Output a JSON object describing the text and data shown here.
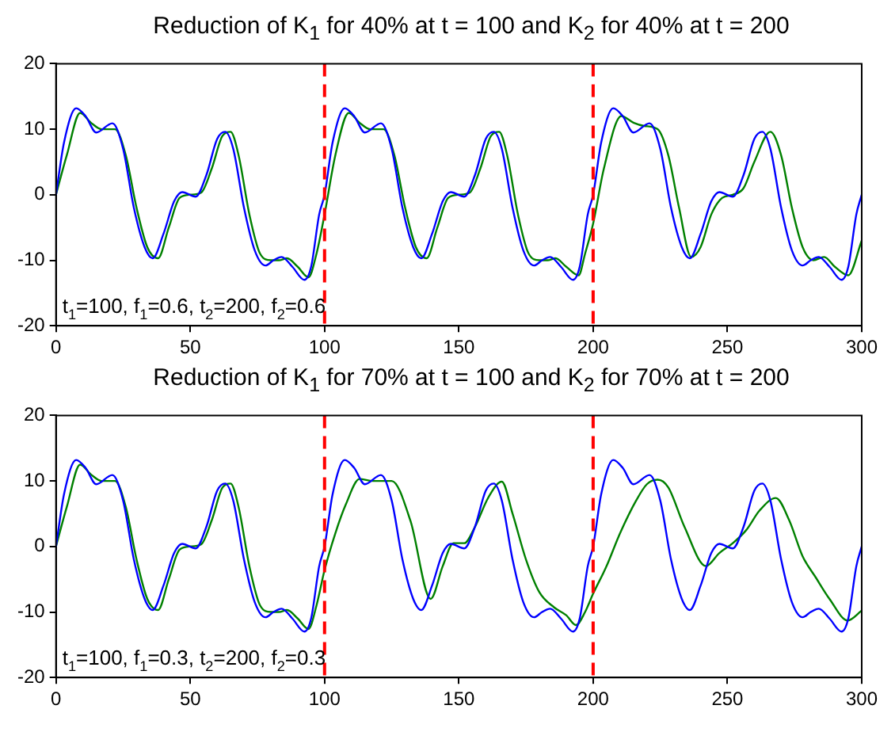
{
  "chart_data": [
    {
      "type": "line",
      "title": "Reduction of K$_{1}$ for 40% at t = 100 and K$_{2}$ for 40% at t = 200",
      "xlim": [
        0,
        300
      ],
      "xticks": [
        0,
        50,
        100,
        150,
        200,
        250,
        300
      ],
      "ylim": [
        -20,
        20
      ],
      "yticks": [
        -20,
        -10,
        0,
        10,
        20
      ],
      "grid": false,
      "marker": "none",
      "line_style": "solid",
      "ref_lines": [
        {
          "axis": "x",
          "value": 100,
          "color": "#ff0000",
          "line_style": "dashed"
        },
        {
          "axis": "x",
          "value": 200,
          "color": "#ff0000",
          "line_style": "dashed"
        }
      ],
      "annotations": [
        "t$_{1}$=100, f$_{1}$=0.6, t$_{2}$=200, f$_{2}$=0.6"
      ],
      "series": [
        {
          "color": "#0000ff",
          "x": [
            0,
            3,
            7.5,
            11,
            15,
            21,
            25,
            29,
            33,
            36,
            40,
            44,
            47,
            52,
            56,
            60,
            63,
            66,
            70,
            74,
            78,
            81,
            84,
            88,
            92.5,
            95,
            98,
            100,
            103,
            107.5,
            111,
            115,
            121,
            125,
            129,
            133,
            136,
            140,
            144,
            147,
            152,
            156,
            160,
            163,
            166,
            170,
            174,
            178,
            181,
            184,
            188,
            192.5,
            195,
            198,
            200,
            203,
            207.5,
            211,
            215,
            221,
            225,
            229,
            233,
            236,
            240,
            244,
            247,
            252,
            256,
            260,
            263,
            266,
            270,
            274,
            278,
            281,
            284,
            288,
            292.5,
            295,
            298,
            300
          ],
          "values": [
            0,
            8,
            13.2,
            12,
            9.5,
            10.9,
            7,
            -2,
            -8,
            -9.7,
            -6,
            -1,
            0.4,
            -0.3,
            3,
            8.5,
            9.6,
            7,
            -2,
            -8.5,
            -10.8,
            -10,
            -9.5,
            -11,
            -13,
            -11,
            -3,
            0,
            8,
            13.2,
            12,
            9.5,
            10.9,
            7,
            -2,
            -8,
            -9.7,
            -6,
            -1,
            0.4,
            -0.3,
            3,
            8.5,
            9.6,
            7,
            -2,
            -8.5,
            -10.8,
            -10,
            -9.5,
            -11,
            -13,
            -11,
            -3,
            0,
            8,
            13.2,
            12,
            9.5,
            10.9,
            7,
            -2,
            -8,
            -9.7,
            -6,
            -1,
            0.4,
            -0.3,
            3,
            8.5,
            9.6,
            7,
            -2,
            -8.5,
            -10.8,
            -10,
            -9.5,
            -11,
            -13,
            -11,
            -3,
            0
          ]
        },
        {
          "color": "#008000",
          "x": [
            0,
            4,
            9,
            13,
            17,
            22,
            26,
            30,
            34,
            38,
            42,
            46,
            50,
            54,
            58,
            62,
            65,
            68,
            72,
            76,
            80,
            83,
            86,
            90,
            94,
            97,
            100,
            104,
            109,
            113,
            117,
            122,
            126,
            130,
            134,
            138,
            142,
            146,
            150,
            154,
            158,
            162,
            165,
            168,
            172,
            176,
            180,
            183,
            186,
            190,
            194.6,
            197,
            200,
            204,
            210.5,
            215,
            219,
            224,
            228,
            232,
            236.5,
            240,
            244,
            248,
            252,
            256,
            260,
            266,
            270,
            274,
            278,
            282,
            286,
            290,
            295,
            300
          ],
          "values": [
            0,
            6,
            12.5,
            11,
            10,
            10,
            6,
            -2,
            -8,
            -9.7,
            -5,
            -0.5,
            0,
            0.3,
            4,
            9,
            9.6,
            6,
            -3,
            -9,
            -10,
            -10,
            -9.7,
            -11,
            -12.6,
            -9,
            -3,
            6,
            12.5,
            11,
            10,
            10,
            6,
            -2,
            -8,
            -9.7,
            -5,
            -0.5,
            0,
            0.3,
            4,
            9,
            9.6,
            6,
            -3,
            -9,
            -10,
            -10,
            -9.7,
            -11,
            -12.3,
            -9,
            -4.4,
            4,
            12,
            11,
            10.5,
            10,
            6,
            -2,
            -9.5,
            -8,
            -3,
            -0.5,
            0,
            1,
            5,
            9.6,
            6,
            -2,
            -8,
            -10,
            -9.5,
            -11,
            -12.3,
            -7
          ]
        }
      ]
    },
    {
      "type": "line",
      "title": "Reduction of K$_{1}$ for 70% at t = 100 and K$_{2}$ for 70% at t = 200",
      "xlim": [
        0,
        300
      ],
      "xticks": [
        0,
        50,
        100,
        150,
        200,
        250,
        300
      ],
      "ylim": [
        -20,
        20
      ],
      "yticks": [
        -20,
        -10,
        0,
        10,
        20
      ],
      "grid": false,
      "marker": "none",
      "line_style": "solid",
      "ref_lines": [
        {
          "axis": "x",
          "value": 100,
          "color": "#ff0000",
          "line_style": "dashed"
        },
        {
          "axis": "x",
          "value": 200,
          "color": "#ff0000",
          "line_style": "dashed"
        }
      ],
      "annotations": [
        "t$_{1}$=100, f$_{1}$=0.3, t$_{2}$=200, f$_{2}$=0.3"
      ],
      "series": [
        {
          "color": "#0000ff",
          "x": [
            0,
            3,
            7.5,
            11,
            15,
            21,
            25,
            29,
            33,
            36,
            40,
            44,
            47,
            52,
            56,
            60,
            63,
            66,
            70,
            74,
            78,
            81,
            84,
            88,
            92.5,
            95,
            98,
            100,
            103,
            107.5,
            111,
            115,
            121,
            125,
            129,
            133,
            136,
            140,
            144,
            147,
            152,
            156,
            160,
            163,
            166,
            170,
            174,
            178,
            181,
            184,
            188,
            192.5,
            195,
            198,
            200,
            203,
            207.5,
            211,
            215,
            221,
            225,
            229,
            233,
            236,
            240,
            244,
            247,
            252,
            256,
            260,
            263,
            266,
            270,
            274,
            278,
            281,
            284,
            288,
            292.5,
            295,
            298,
            300
          ],
          "values": [
            0,
            8,
            13.2,
            12,
            9.5,
            10.9,
            7,
            -2,
            -8,
            -9.7,
            -6,
            -1,
            0.4,
            -0.3,
            3,
            8.5,
            9.6,
            7,
            -2,
            -8.5,
            -10.8,
            -10,
            -9.5,
            -11,
            -13,
            -11,
            -3,
            0,
            8,
            13.2,
            12,
            9.5,
            10.9,
            7,
            -2,
            -8,
            -9.7,
            -6,
            -1,
            0.4,
            -0.3,
            3,
            8.5,
            9.6,
            7,
            -2,
            -8.5,
            -10.8,
            -10,
            -9.5,
            -11,
            -13,
            -11,
            -3,
            0,
            8,
            13.2,
            12,
            9.5,
            10.9,
            7,
            -2,
            -8,
            -9.7,
            -6,
            -1,
            0.4,
            -0.3,
            3,
            8.5,
            9.6,
            7,
            -2,
            -8.5,
            -10.8,
            -10,
            -9.5,
            -11,
            -13,
            -11,
            -3,
            0
          ]
        },
        {
          "color": "#008000",
          "x": [
            0,
            4,
            9,
            13,
            17,
            22,
            26,
            30,
            34,
            38,
            42,
            46,
            50,
            54,
            58,
            62,
            65,
            68,
            72,
            76,
            80,
            83,
            86,
            90,
            94,
            97,
            100,
            104,
            108,
            113,
            118,
            125,
            132,
            139.5,
            144,
            148,
            152,
            156,
            161,
            166,
            170,
            175,
            180,
            185.5,
            190,
            193.6,
            197,
            200,
            205,
            210,
            216,
            220,
            224,
            228,
            234,
            242,
            247,
            252,
            257,
            262,
            268,
            273,
            278,
            283,
            288,
            294.8,
            300
          ],
          "values": [
            0,
            6,
            12.5,
            11,
            10,
            10,
            6,
            -2,
            -8,
            -9.7,
            -5,
            -0.5,
            0,
            0.3,
            4,
            9,
            9.6,
            6,
            -3,
            -9,
            -10,
            -10,
            -9.7,
            -11,
            -12.6,
            -9,
            -3.6,
            2,
            6.5,
            10.3,
            10,
            10,
            3.9,
            -8,
            -3,
            0.5,
            0.5,
            3,
            7.5,
            9.9,
            5,
            -2,
            -7,
            -9.3,
            -10.5,
            -12,
            -10,
            -7.2,
            -3,
            2,
            7,
            9.5,
            10.2,
            9,
            3,
            -3,
            -1,
            0.5,
            2.5,
            5.5,
            7.4,
            4,
            -1.5,
            -4.8,
            -8,
            -11.3,
            -9.8
          ]
        }
      ]
    }
  ]
}
